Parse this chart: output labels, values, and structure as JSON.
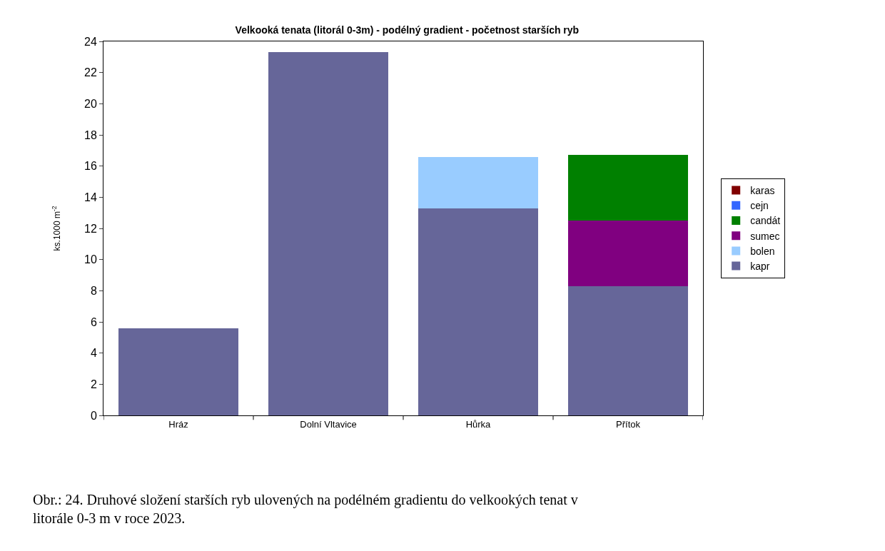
{
  "chart_data": {
    "type": "bar",
    "title": "Velkooká tenata (litorál 0-3m) - podélný gradient - početnost starších ryb",
    "ylabel": "ks.1000 m$^{-2}$",
    "categories": [
      "Hráz",
      "Dolní Vltavice",
      "Hůrka",
      "Přítok"
    ],
    "stacked": true,
    "series": [
      {
        "name": "kapr",
        "color": "#666699",
        "values": [
          5.6,
          23.3,
          13.3,
          8.3
        ]
      },
      {
        "name": "bolen",
        "color": "#99ccff",
        "values": [
          0,
          0,
          3.3,
          0
        ]
      },
      {
        "name": "sumec",
        "color": "#800080",
        "values": [
          0,
          0,
          0,
          4.2
        ]
      },
      {
        "name": "candát",
        "color": "#008000",
        "values": [
          0,
          0,
          0,
          4.2
        ]
      },
      {
        "name": "cejn",
        "color": "#3366ff",
        "values": [
          0,
          0,
          0,
          0
        ]
      },
      {
        "name": "karas",
        "color": "#800000",
        "values": [
          0,
          0,
          0,
          0
        ]
      }
    ],
    "ylim": [
      0,
      24
    ],
    "yticks": [
      0,
      2,
      4,
      6,
      8,
      10,
      12,
      14,
      16,
      18,
      20,
      22,
      24
    ],
    "grid": false,
    "legend": "right",
    "annotations": [
      "Obr.: 24. Druhové složení starších ryb ulovených na podélném gradientu do velkookých tenat v litorále 0-3 m v roce 2023."
    ]
  }
}
